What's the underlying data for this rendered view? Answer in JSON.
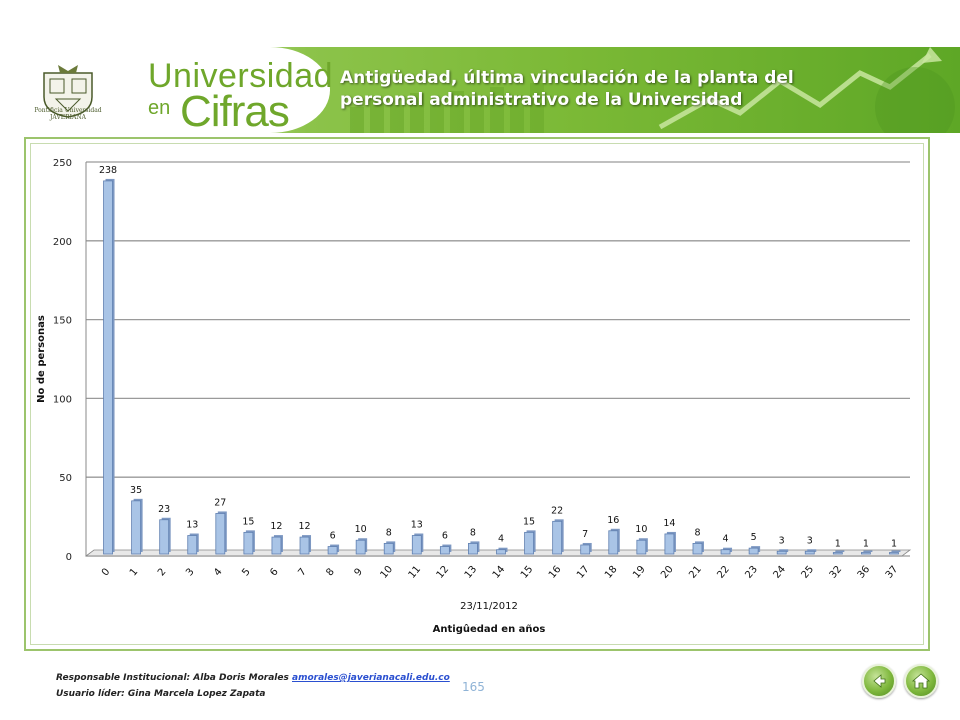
{
  "header": {
    "brand_line1": "Universidad",
    "brand_line2": "en",
    "brand_line3": "Cifras",
    "crest_text": "Pontificia Universidad JAVERIANA",
    "title": "Antigüedad, última vinculación de la planta del personal administrativo de la Universidad"
  },
  "colors": {
    "bar": "#a9c4e6",
    "bar_edge": "#5f7fb0",
    "accent_green": "#7bb936",
    "frame": "#9cc46c"
  },
  "chart_data": {
    "type": "bar",
    "categories": [
      "0",
      "1",
      "2",
      "3",
      "4",
      "5",
      "6",
      "7",
      "8",
      "9",
      "10",
      "11",
      "12",
      "13",
      "14",
      "15",
      "16",
      "17",
      "18",
      "19",
      "20",
      "21",
      "22",
      "23",
      "24",
      "25",
      "32",
      "36",
      "37"
    ],
    "values": [
      238,
      35,
      23,
      13,
      27,
      15,
      12,
      12,
      6,
      10,
      8,
      13,
      6,
      8,
      4,
      15,
      22,
      7,
      16,
      10,
      14,
      8,
      4,
      5,
      3,
      3,
      1,
      1,
      1
    ],
    "xlabel": "Antigûedad en años",
    "xsublabel": "23/11/2012",
    "ylabel": "No de personas",
    "ylim": [
      0,
      250
    ],
    "yticks": [
      0,
      50,
      100,
      150,
      200,
      250
    ],
    "grid": true
  },
  "footer": {
    "line1_prefix": "Responsable Institucional: Alba Doris Morales",
    "email": "amorales@javerianacali.edu.co",
    "line2": "Usuario líder: Gina Marcela Lopez Zapata",
    "page_number": "165"
  },
  "nav": {
    "back_icon": "back-arrow-icon",
    "home_icon": "home-icon"
  }
}
